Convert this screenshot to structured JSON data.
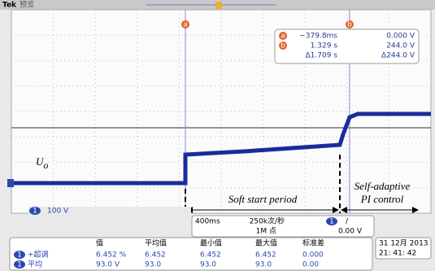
{
  "header": {
    "brand": "Tek",
    "mode": "预览"
  },
  "cursors": {
    "a": "a",
    "b": "b"
  },
  "readout": [
    [
      "a",
      "−379.8ms",
      "0.000 V"
    ],
    [
      "b",
      "1.329 s",
      "244.0 V"
    ],
    [
      "",
      "Δ1.709 s",
      "Δ244.0 V"
    ]
  ],
  "annotations": {
    "signal": "U",
    "signal_sub": "o",
    "soft_start": "Soft start period",
    "adaptive_1": "Self-adaptive",
    "adaptive_2": "PI control"
  },
  "channel": {
    "number": "1",
    "scale": "100 V"
  },
  "acquisition": {
    "timebase": "400ms",
    "rate": "250k次/秒",
    "points": "1M 点",
    "trigger_channel": "1",
    "trigger_slope": "/",
    "trigger_level": "0.00 V"
  },
  "measurements": {
    "headers": [
      "值",
      "平均值",
      "最小值",
      "最大值",
      "标准差"
    ],
    "rows": [
      {
        "channel": "1",
        "name": "+超调",
        "cells": [
          "6.452 %",
          "6.452",
          "6.452",
          "6.452",
          "0.000"
        ]
      },
      {
        "channel": "1",
        "name": "平均",
        "cells": [
          "93.0 V",
          "93.0",
          "93.0",
          "93.0",
          "0.00"
        ]
      }
    ]
  },
  "datetime": {
    "date": "31 12月  2013",
    "time": "21: 41: 42"
  }
}
